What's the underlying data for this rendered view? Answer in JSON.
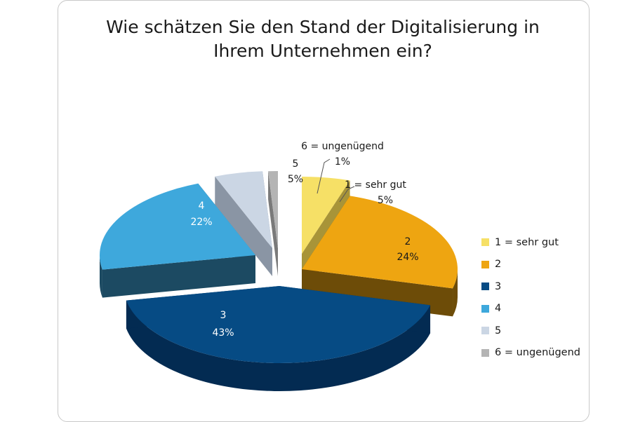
{
  "chart_data": {
    "type": "pie",
    "title": [
      "Wie schätzen Sie den Stand der Digitalisierung in",
      "Ihrem Unternehmen ein?"
    ],
    "slices": [
      {
        "label": "1 = sehr gut",
        "value": 5,
        "display": "5%",
        "color": "#f6e066",
        "side": "#a89438"
      },
      {
        "label": "2",
        "value": 24,
        "display": "24%",
        "color": "#eea511",
        "side": "#6d4c08"
      },
      {
        "label": "3",
        "value": 43,
        "display": "43%",
        "color": "#064b84",
        "side": "#032b52"
      },
      {
        "label": "4",
        "value": 22,
        "display": "22%",
        "color": "#3ea8dc",
        "side": "#1c4a62"
      },
      {
        "label": "5",
        "value": 5,
        "display": "5%",
        "color": "#cbd6e4",
        "side": "#8a95a4"
      },
      {
        "label": "6 = ungenügend",
        "value": 1,
        "display": "1%",
        "color": "#b4b4b4",
        "side": "#7a7a7a"
      }
    ],
    "legend_position": "right",
    "style": "3d-exploded"
  }
}
